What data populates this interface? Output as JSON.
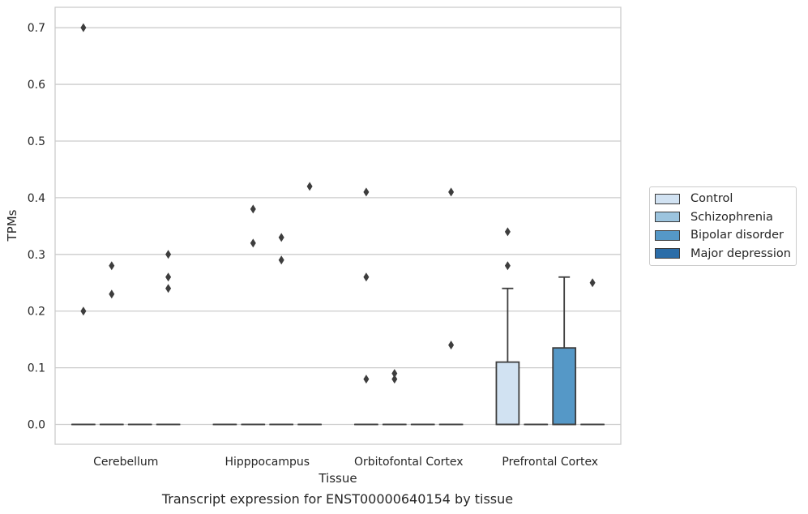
{
  "chart_data": {
    "type": "box",
    "title": "",
    "caption": "Transcript expression for ENST00000640154 by tissue",
    "xlabel": "Tissue",
    "ylabel": "TPMs",
    "ylim": [
      -0.035,
      0.736
    ],
    "yticks": [
      "0.0",
      "0.1",
      "0.2",
      "0.3",
      "0.4",
      "0.5",
      "0.6",
      "0.7"
    ],
    "ytick_values": [
      0,
      0.1,
      0.2,
      0.3,
      0.4,
      0.5,
      0.6,
      0.7
    ],
    "categories": [
      "Cerebellum",
      "Hipppocampus",
      "Orbitofontal Cortex",
      "Prefrontal Cortex"
    ],
    "grid": "horizontal",
    "legend_position": "right",
    "series": [
      {
        "name": "Control",
        "color": "#d1e2f2",
        "boxes": [
          {
            "q1": 0,
            "median": 0,
            "q3": 0,
            "whisker_low": 0,
            "whisker_high": 0,
            "outliers": [
              0.7,
              0.2
            ]
          },
          {
            "q1": 0,
            "median": 0,
            "q3": 0,
            "whisker_low": 0,
            "whisker_high": 0,
            "outliers": []
          },
          {
            "q1": 0,
            "median": 0,
            "q3": 0,
            "whisker_low": 0,
            "whisker_high": 0,
            "outliers": [
              0.41,
              0.26,
              0.08
            ]
          },
          {
            "q1": 0,
            "median": 0,
            "q3": 0.11,
            "whisker_low": 0,
            "whisker_high": 0.24,
            "outliers": [
              0.34,
              0.28
            ]
          }
        ]
      },
      {
        "name": "Schizophrenia",
        "color": "#9cc4de",
        "boxes": [
          {
            "q1": 0,
            "median": 0,
            "q3": 0,
            "whisker_low": 0,
            "whisker_high": 0,
            "outliers": [
              0.28,
              0.23
            ]
          },
          {
            "q1": 0,
            "median": 0,
            "q3": 0,
            "whisker_low": 0,
            "whisker_high": 0,
            "outliers": [
              0.38,
              0.32
            ]
          },
          {
            "q1": 0,
            "median": 0,
            "q3": 0,
            "whisker_low": 0,
            "whisker_high": 0,
            "outliers": [
              0.09,
              0.08
            ]
          },
          {
            "q1": 0,
            "median": 0,
            "q3": 0,
            "whisker_low": 0,
            "whisker_high": 0,
            "outliers": []
          }
        ]
      },
      {
        "name": "Bipolar disorder",
        "color": "#5598c7",
        "boxes": [
          {
            "q1": 0,
            "median": 0,
            "q3": 0,
            "whisker_low": 0,
            "whisker_high": 0,
            "outliers": []
          },
          {
            "q1": 0,
            "median": 0,
            "q3": 0,
            "whisker_low": 0,
            "whisker_high": 0,
            "outliers": [
              0.33,
              0.29
            ]
          },
          {
            "q1": 0,
            "median": 0,
            "q3": 0,
            "whisker_low": 0,
            "whisker_high": 0,
            "outliers": []
          },
          {
            "q1": 0,
            "median": 0,
            "q3": 0.135,
            "whisker_low": 0,
            "whisker_high": 0.26,
            "outliers": []
          }
        ]
      },
      {
        "name": "Major depression",
        "color": "#2b6da8",
        "boxes": [
          {
            "q1": 0,
            "median": 0,
            "q3": 0,
            "whisker_low": 0,
            "whisker_high": 0,
            "outliers": [
              0.3,
              0.26,
              0.24
            ]
          },
          {
            "q1": 0,
            "median": 0,
            "q3": 0,
            "whisker_low": 0,
            "whisker_high": 0,
            "outliers": [
              0.42
            ]
          },
          {
            "q1": 0,
            "median": 0,
            "q3": 0,
            "whisker_low": 0,
            "whisker_high": 0,
            "outliers": [
              0.41,
              0.14
            ]
          },
          {
            "q1": 0,
            "median": 0,
            "q3": 0,
            "whisker_low": 0,
            "whisker_high": 0,
            "outliers": [
              0.25
            ]
          }
        ]
      }
    ]
  }
}
